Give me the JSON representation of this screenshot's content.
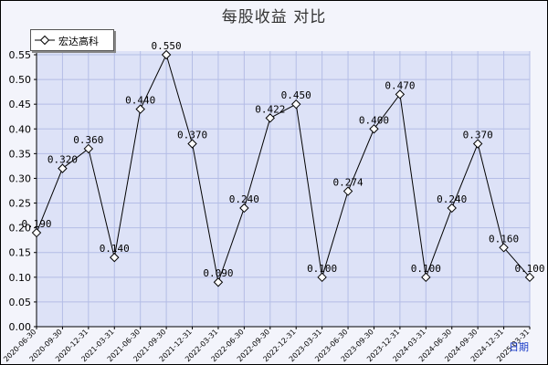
{
  "chart_data": {
    "type": "line",
    "title": "每股收益  对比",
    "xlabel": "日期",
    "ylabel": "",
    "ylim": [
      0,
      0.55
    ],
    "y_ticks": [
      "0.00",
      "0.05",
      "0.10",
      "0.15",
      "0.20",
      "0.25",
      "0.30",
      "0.35",
      "0.40",
      "0.45",
      "0.50",
      "0.55"
    ],
    "grid": true,
    "legend_position": "top-left",
    "categories": [
      "2020-06-30",
      "2020-09-30",
      "2020-12-31",
      "2021-03-31",
      "2021-06-30",
      "2021-09-30",
      "2021-12-31",
      "2022-03-31",
      "2022-06-30",
      "2022-09-30",
      "2022-12-31",
      "2023-03-31",
      "2023-06-30",
      "2023-09-30",
      "2023-12-31",
      "2024-03-31",
      "2024-06-30",
      "2024-09-30",
      "2024-12-31",
      "2025-03-31"
    ],
    "series": [
      {
        "name": "宏达高科",
        "color": "#000000",
        "marker": "diamond",
        "values": [
          0.19,
          0.32,
          0.36,
          0.14,
          0.44,
          0.55,
          0.37,
          0.09,
          0.24,
          0.422,
          0.45,
          0.1,
          0.274,
          0.4,
          0.47,
          0.1,
          0.24,
          0.37,
          0.16,
          0.1
        ],
        "labels": [
          "0.190",
          "0.320",
          "0.360",
          "0.140",
          "0.440",
          "0.550",
          "0.370",
          "0.090",
          "0.240",
          "0.422",
          "0.450",
          "0.100",
          "0.274",
          "0.400",
          "0.470",
          "0.100",
          "0.240",
          "0.370",
          "0.160",
          "0.100"
        ]
      }
    ]
  }
}
